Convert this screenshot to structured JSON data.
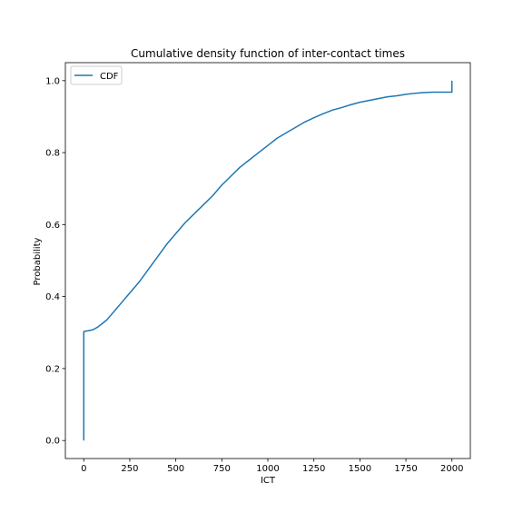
{
  "chart_data": {
    "type": "line",
    "title": "Cumulative density function of inter-contact times",
    "xlabel": "ICT",
    "ylabel": "Probability",
    "xlim": [
      -100,
      2100
    ],
    "ylim": [
      -0.05,
      1.05
    ],
    "xticks": [
      0,
      250,
      500,
      750,
      1000,
      1250,
      1500,
      1750,
      2000
    ],
    "yticks": [
      0.0,
      0.2,
      0.4,
      0.6,
      0.8,
      1.0
    ],
    "xtick_labels": [
      "0",
      "250",
      "500",
      "750",
      "1000",
      "1250",
      "1500",
      "1750",
      "2000"
    ],
    "ytick_labels": [
      "0.0",
      "0.2",
      "0.4",
      "0.6",
      "0.8",
      "1.0"
    ],
    "grid": false,
    "legend": {
      "position": "top-left"
    },
    "series": [
      {
        "name": "CDF",
        "color": "#1f77b4",
        "x": [
          0,
          0,
          25,
          50,
          75,
          100,
          125,
          150,
          175,
          200,
          250,
          300,
          350,
          400,
          450,
          500,
          550,
          600,
          650,
          700,
          750,
          800,
          850,
          900,
          950,
          1000,
          1050,
          1100,
          1150,
          1200,
          1250,
          1300,
          1350,
          1400,
          1450,
          1500,
          1550,
          1600,
          1650,
          1700,
          1750,
          1800,
          1850,
          1900,
          1950,
          2000,
          2000
        ],
        "y": [
          0.0,
          0.303,
          0.305,
          0.308,
          0.315,
          0.325,
          0.335,
          0.35,
          0.365,
          0.38,
          0.41,
          0.44,
          0.475,
          0.51,
          0.545,
          0.575,
          0.605,
          0.63,
          0.655,
          0.68,
          0.71,
          0.735,
          0.76,
          0.78,
          0.8,
          0.82,
          0.84,
          0.855,
          0.87,
          0.885,
          0.897,
          0.908,
          0.918,
          0.925,
          0.933,
          0.94,
          0.945,
          0.95,
          0.955,
          0.958,
          0.962,
          0.965,
          0.967,
          0.968,
          0.968,
          0.968,
          1.0
        ]
      }
    ]
  }
}
